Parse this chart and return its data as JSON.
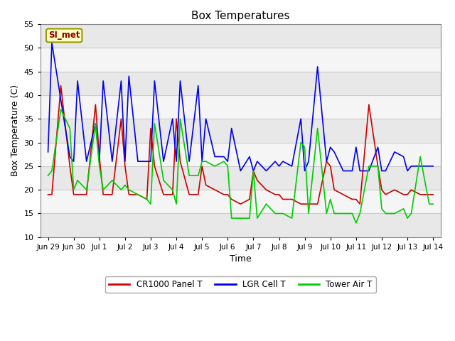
{
  "title": "Box Temperatures",
  "xlabel": "Time",
  "ylabel": "Box Temperature (C)",
  "ylim": [
    10,
    55
  ],
  "yticks": [
    10,
    15,
    20,
    25,
    30,
    35,
    40,
    45,
    50,
    55
  ],
  "annotation_text": "SI_met",
  "fig_bg_color": "#ffffff",
  "band_colors": [
    "#e8e8e8",
    "#f5f5f5"
  ],
  "grid_line_color": "#cccccc",
  "series": {
    "CR1000 Panel T": {
      "color": "#cc0000",
      "x": [
        0.0,
        0.15,
        0.5,
        0.85,
        1.0,
        1.15,
        1.5,
        1.85,
        2.0,
        2.15,
        2.5,
        2.85,
        3.0,
        3.15,
        3.5,
        3.85,
        4.0,
        4.15,
        4.5,
        4.85,
        5.0,
        5.15,
        5.5,
        5.85,
        6.0,
        6.15,
        6.5,
        6.85,
        7.0,
        7.15,
        7.5,
        7.85,
        8.0,
        8.15,
        8.5,
        8.85,
        9.0,
        9.15,
        9.5,
        9.85,
        10.0,
        10.15,
        10.5,
        10.85,
        11.0,
        11.15,
        11.5,
        11.85,
        12.0,
        12.15,
        12.5,
        12.85,
        13.0,
        13.15,
        13.5,
        13.85,
        14.0,
        14.15,
        14.5,
        14.85,
        15.0
      ],
      "y": [
        19,
        19,
        42,
        25,
        19,
        19,
        19,
        38,
        27,
        19,
        19,
        35,
        25,
        19,
        19,
        18,
        33,
        25,
        19,
        19,
        35,
        26,
        19,
        19,
        25,
        21,
        20,
        19,
        19,
        18,
        17,
        18,
        24,
        22,
        20,
        19,
        19,
        18,
        18,
        17,
        17,
        17,
        17,
        26,
        25,
        20,
        19,
        18,
        18,
        17,
        38,
        25,
        20,
        19,
        20,
        19,
        19,
        20,
        19,
        19,
        19
      ]
    },
    "LGR Cell T": {
      "color": "#0000ee",
      "x": [
        0.0,
        0.15,
        0.5,
        0.85,
        1.0,
        1.15,
        1.5,
        1.85,
        2.0,
        2.15,
        2.5,
        2.85,
        3.0,
        3.15,
        3.5,
        3.85,
        4.0,
        4.15,
        4.5,
        4.85,
        5.0,
        5.15,
        5.5,
        5.85,
        6.0,
        6.15,
        6.5,
        6.85,
        7.0,
        7.15,
        7.5,
        7.85,
        8.0,
        8.15,
        8.5,
        8.85,
        9.0,
        9.15,
        9.5,
        9.85,
        10.0,
        10.15,
        10.5,
        10.85,
        11.0,
        11.15,
        11.5,
        11.85,
        12.0,
        12.15,
        12.5,
        12.85,
        13.0,
        13.15,
        13.5,
        13.85,
        14.0,
        14.15,
        14.5,
        14.85,
        15.0
      ],
      "y": [
        28,
        51,
        39,
        27,
        26,
        43,
        26,
        34,
        26,
        43,
        26,
        43,
        26,
        44,
        26,
        26,
        26,
        43,
        26,
        35,
        26,
        43,
        26,
        42,
        26,
        35,
        27,
        27,
        26,
        33,
        24,
        27,
        24,
        26,
        24,
        26,
        25,
        26,
        25,
        35,
        24,
        26,
        46,
        26,
        29,
        28,
        24,
        24,
        29,
        24,
        24,
        29,
        24,
        24,
        28,
        27,
        24,
        25,
        25,
        25,
        25
      ]
    },
    "Tower Air T": {
      "color": "#00cc00",
      "x": [
        0.0,
        0.15,
        0.5,
        0.85,
        1.0,
        1.15,
        1.5,
        1.85,
        2.0,
        2.15,
        2.5,
        2.85,
        3.0,
        3.15,
        3.5,
        3.85,
        4.0,
        4.15,
        4.5,
        4.85,
        5.0,
        5.15,
        5.5,
        5.85,
        6.0,
        6.15,
        6.5,
        6.85,
        7.0,
        7.15,
        7.5,
        7.85,
        8.0,
        8.15,
        8.5,
        8.85,
        9.0,
        9.15,
        9.5,
        9.85,
        10.0,
        10.15,
        10.5,
        10.85,
        11.0,
        11.15,
        11.5,
        11.85,
        12.0,
        12.15,
        12.5,
        12.85,
        13.0,
        13.15,
        13.5,
        13.85,
        14.0,
        14.15,
        14.5,
        14.85,
        15.0
      ],
      "y": [
        23,
        24,
        37,
        33,
        20,
        22,
        20,
        34,
        25,
        20,
        22,
        20,
        21,
        20,
        19,
        18,
        17,
        34,
        22,
        20,
        17,
        35,
        23,
        23,
        26,
        26,
        25,
        26,
        25,
        14,
        14,
        14,
        24,
        14,
        17,
        15,
        15,
        15,
        14,
        30,
        29,
        15,
        33,
        15,
        18,
        15,
        15,
        15,
        13,
        15,
        25,
        25,
        16,
        15,
        15,
        16,
        14,
        15,
        27,
        17,
        17
      ]
    }
  },
  "xtick_positions": [
    0,
    1,
    2,
    3,
    4,
    5,
    6,
    7,
    8,
    9,
    10,
    11,
    12,
    13,
    14,
    15
  ],
  "xtick_labels": [
    "Jun 29",
    "Jun 30",
    "Jul 1",
    "Jul 2",
    "Jul 3",
    "Jul 4",
    "Jul 5",
    "Jul 6",
    "Jul 7",
    "Jul 8",
    "Jul 9",
    "Jul 10",
    "Jul 11",
    "Jul 12",
    "Jul 13",
    "Jul 14"
  ]
}
